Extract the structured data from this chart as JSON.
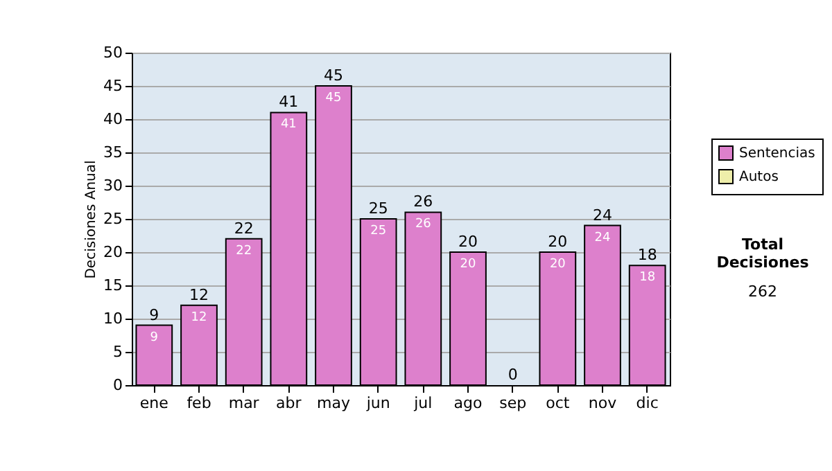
{
  "chart_data": {
    "type": "bar",
    "stacked": true,
    "ylabel": "Decisiones Anual",
    "categories": [
      "ene",
      "feb",
      "mar",
      "abr",
      "may",
      "jun",
      "jul",
      "ago",
      "sep",
      "oct",
      "nov",
      "dic"
    ],
    "series": [
      {
        "name": "Sentencias",
        "color": "#dd80cc",
        "values": [
          9,
          12,
          22,
          41,
          45,
          25,
          26,
          20,
          0,
          20,
          24,
          18
        ],
        "value_labels": [
          "9",
          "12",
          "22",
          "41",
          "45",
          "25",
          "26",
          "20",
          null,
          "20",
          "24",
          "18"
        ]
      },
      {
        "name": "Autos",
        "color": "#eeeeaa",
        "values": [
          0,
          0,
          0,
          0,
          0,
          0,
          0,
          0,
          0,
          0,
          0,
          0
        ]
      }
    ],
    "totals": [
      "9",
      "12",
      "22",
      "41",
      "45",
      "25",
      "26",
      "20",
      "0",
      "20",
      "24",
      "18"
    ],
    "ylim": [
      0,
      50
    ],
    "yticks": [
      0,
      5,
      10,
      15,
      20,
      25,
      30,
      35,
      40,
      45,
      50
    ],
    "grid": "y",
    "legend": "right",
    "annotations": [
      "Total Decisiones",
      "262"
    ]
  }
}
